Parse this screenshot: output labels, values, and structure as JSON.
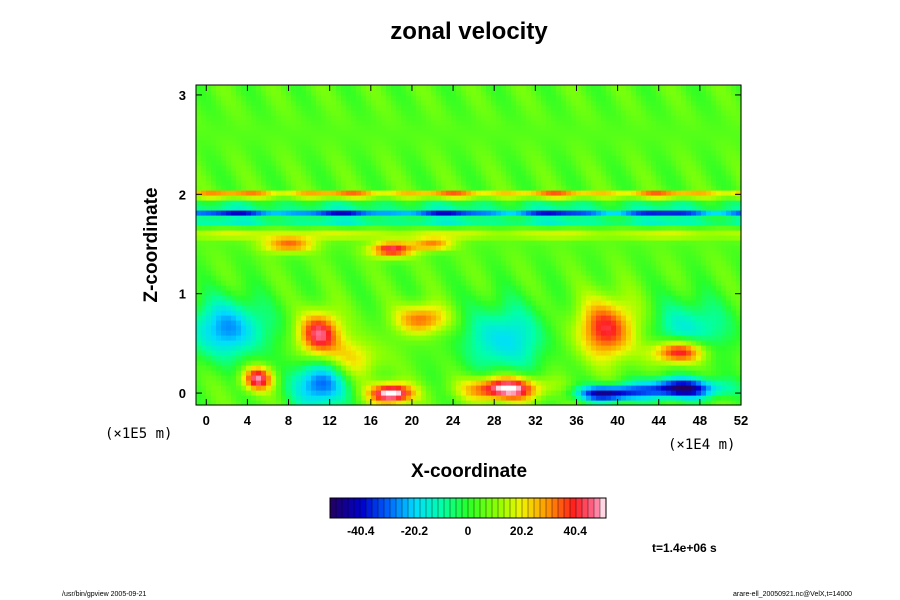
{
  "chart_data": {
    "type": "heatmap",
    "title": "zonal velocity",
    "xlabel": "X-coordinate",
    "ylabel": "Z-coordinate",
    "x_unit": "(×1E4 m)",
    "y_unit": "(×1E5 m)",
    "xlim": [
      -1,
      52
    ],
    "ylim": [
      -0.12,
      3.1
    ],
    "x_ticks": [
      "0",
      "4",
      "8",
      "12",
      "16",
      "20",
      "24",
      "28",
      "32",
      "36",
      "40",
      "44",
      "48",
      "52"
    ],
    "x_tick_values": [
      0,
      4,
      8,
      12,
      16,
      20,
      24,
      28,
      32,
      36,
      40,
      44,
      48,
      52
    ],
    "y_ticks": [
      "0",
      "1",
      "2",
      "3"
    ],
    "y_tick_values": [
      0,
      1,
      2,
      3
    ],
    "colorbar": {
      "range": [
        -52,
        52
      ],
      "tick_labels": [
        "-40.4",
        "-20.2",
        "0",
        "20.2",
        "40.4"
      ],
      "tick_values": [
        -40.4,
        -20.2,
        0,
        20.2,
        40.4
      ]
    },
    "background_value": 5,
    "bands": [
      {
        "z": 2.0,
        "width": 0.03,
        "value": 38
      },
      {
        "z": 1.93,
        "width": 0.03,
        "value": -12
      },
      {
        "z": 1.82,
        "width": 0.045,
        "value": -44
      },
      {
        "z": 1.72,
        "width": 0.04,
        "value": -18
      },
      {
        "z": 1.6,
        "width": 0.05,
        "value": 14
      }
    ],
    "features": [
      {
        "x": 39,
        "z": 0.0,
        "rx": 3,
        "rz": 0.08,
        "value": -52
      },
      {
        "x": 46,
        "z": 0.05,
        "rx": 4,
        "rz": 0.1,
        "value": -55
      },
      {
        "x": 11,
        "z": 0.1,
        "rx": 2.5,
        "rz": 0.25,
        "value": -38
      },
      {
        "x": 2,
        "z": 0.65,
        "rx": 4,
        "rz": 0.3,
        "value": -30
      },
      {
        "x": 29,
        "z": 0.55,
        "rx": 4,
        "rz": 0.35,
        "value": -24
      },
      {
        "x": 47,
        "z": 0.65,
        "rx": 4,
        "rz": 0.3,
        "value": -20
      },
      {
        "x": 18,
        "z": 0.0,
        "rx": 2,
        "rz": 0.1,
        "value": 55
      },
      {
        "x": 29,
        "z": 0.05,
        "rx": 3.5,
        "rz": 0.12,
        "value": 52
      },
      {
        "x": 11,
        "z": 0.6,
        "rx": 2,
        "rz": 0.22,
        "value": 42
      },
      {
        "x": 21,
        "z": 0.75,
        "rx": 2.5,
        "rz": 0.15,
        "value": 30
      },
      {
        "x": 39,
        "z": 0.65,
        "rx": 3,
        "rz": 0.3,
        "value": 36
      },
      {
        "x": 46,
        "z": 0.42,
        "rx": 2.5,
        "rz": 0.12,
        "value": 46
      },
      {
        "x": 5,
        "z": 0.15,
        "rx": 1.5,
        "rz": 0.12,
        "value": 42
      },
      {
        "x": 18,
        "z": 1.45,
        "rx": 2,
        "rz": 0.08,
        "value": 40
      },
      {
        "x": 8,
        "z": 1.5,
        "rx": 2.5,
        "rz": 0.08,
        "value": 30
      },
      {
        "x": 22,
        "z": 1.5,
        "rx": 2,
        "rz": 0.06,
        "value": 28
      },
      {
        "x": 14,
        "z": 0.35,
        "rx": 3,
        "rz": 0.2,
        "value": 18
      }
    ]
  },
  "footer": {
    "left": "/usr/bin/gpview 2005-09-21",
    "right": "arare-ell_20050921.nc@VelX,t=14000"
  },
  "time_label": "t=1.4e+06 s"
}
